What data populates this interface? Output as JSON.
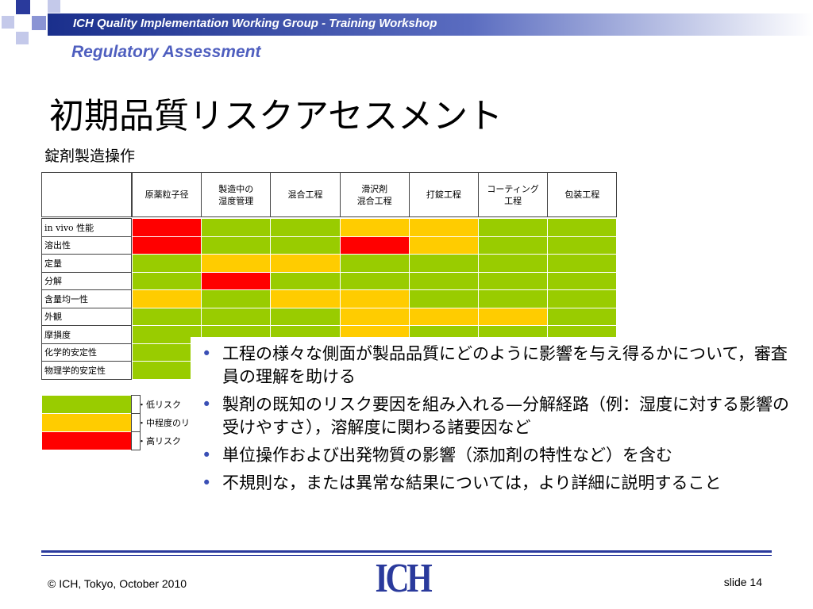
{
  "header": {
    "workshop": "ICH Quality Implementation Working Group - Training Workshop",
    "section": "Regulatory Assessment"
  },
  "title": "初期品質リスクアセスメント",
  "subtitle": "錠剤製造操作",
  "table": {
    "columns": [
      "原薬粒子径",
      "製造中の\n湿度管理",
      "混合工程",
      "滑沢剤\n混合工程",
      "打錠工程",
      "コーティング\n工程",
      "包装工程"
    ],
    "rows": [
      {
        "label": "in vivo 性能",
        "colors": [
          "#ff0000",
          "#99cc00",
          "#99cc00",
          "#ffcc00",
          "#ffcc00",
          "#99cc00",
          "#99cc00"
        ]
      },
      {
        "label": "溶出性",
        "colors": [
          "#ff0000",
          "#99cc00",
          "#99cc00",
          "#ff0000",
          "#ffcc00",
          "#99cc00",
          "#99cc00"
        ]
      },
      {
        "label": "定量",
        "colors": [
          "#99cc00",
          "#ffcc00",
          "#ffcc00",
          "#99cc00",
          "#99cc00",
          "#99cc00",
          "#99cc00"
        ]
      },
      {
        "label": "分解",
        "colors": [
          "#99cc00",
          "#ff0000",
          "#99cc00",
          "#99cc00",
          "#99cc00",
          "#99cc00",
          "#99cc00"
        ]
      },
      {
        "label": "含量均一性",
        "colors": [
          "#ffcc00",
          "#99cc00",
          "#ffcc00",
          "#ffcc00",
          "#99cc00",
          "#99cc00",
          "#99cc00"
        ]
      },
      {
        "label": "外観",
        "colors": [
          "#99cc00",
          "#99cc00",
          "#99cc00",
          "#ffcc00",
          "#ffcc00",
          "#ffcc00",
          "#99cc00"
        ]
      },
      {
        "label": "摩損度",
        "colors": [
          "#99cc00",
          "#99cc00",
          "#99cc00",
          "#ffcc00",
          "#99cc00",
          "#99cc00",
          "#99cc00"
        ]
      },
      {
        "label": "化学的安定性",
        "colors": [
          "#99cc00",
          "#99cc00",
          "#99cc00",
          "#99cc00",
          "#99cc00",
          "#99cc00",
          "#99cc00"
        ]
      },
      {
        "label": "物理学的安定性",
        "colors": [
          "#99cc00",
          "#99cc00",
          "#99cc00",
          "#99cc00",
          "#99cc00",
          "#99cc00",
          "#99cc00"
        ]
      }
    ]
  },
  "legend": [
    {
      "label": "・低リスク",
      "color": "#99cc00"
    },
    {
      "label": "・中程度のリスク",
      "color": "#ffcc00"
    },
    {
      "label": "・高リスク",
      "color": "#ff0000"
    }
  ],
  "bullets": [
    "工程の様々な側面が製品品質にどのように影響を与え得るかについて，審査員の理解を助ける",
    "製剤の既知のリスク要因を組み入れる—分解経路（例：湿度に対する影響の受けやすさ），溶解度に関わる諸要因など",
    "単位操作および出発物質の影響（添加剤の特性など）を含む",
    "不規則な，または異常な結果については，より詳細に説明すること"
  ],
  "footer": {
    "copyright": "© ICH, Tokyo, October 2010",
    "logo": "ICH",
    "slide": "slide 14"
  }
}
